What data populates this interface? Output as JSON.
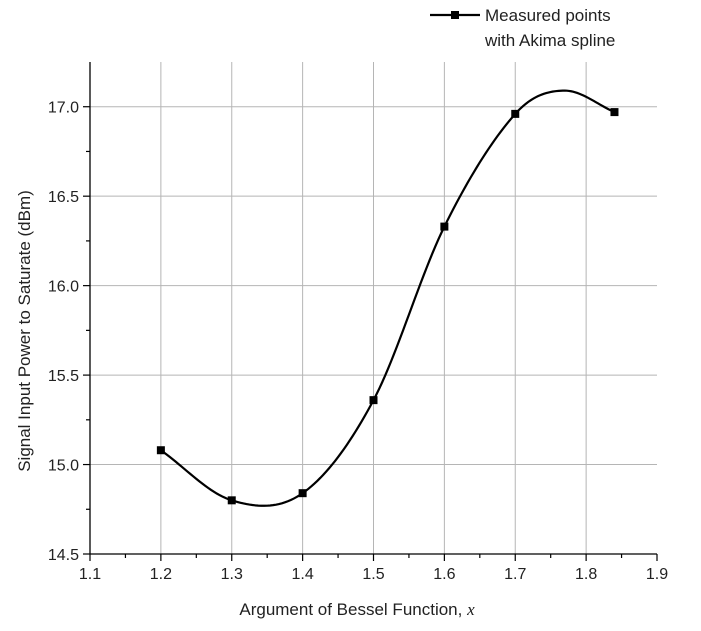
{
  "chart_data": {
    "type": "line",
    "title": "",
    "xlabel": "Argument of Bessel Function, ",
    "xlabel_var": "x",
    "ylabel": "Signal Input Power to Saturate (dBm)",
    "xlim": [
      1.1,
      1.9
    ],
    "ylim": [
      14.5,
      17.25
    ],
    "xticks": [
      "1.1",
      "1.2",
      "1.3",
      "1.4",
      "1.5",
      "1.6",
      "1.7",
      "1.8",
      "1.9"
    ],
    "yticks": [
      "14.5",
      "15.0",
      "15.5",
      "16.0",
      "16.5",
      "17.0"
    ],
    "grid": true,
    "legend_position": "top-right",
    "legend_lines": [
      "Measured points",
      "with Akima spline"
    ],
    "series": [
      {
        "name": "Measured points with Akima spline",
        "marker": "square",
        "x": [
          1.2,
          1.3,
          1.4,
          1.5,
          1.6,
          1.7,
          1.84
        ],
        "y": [
          15.08,
          14.8,
          14.84,
          15.36,
          16.33,
          16.96,
          16.97
        ]
      }
    ],
    "spline_peak": {
      "x": 1.77,
      "y": 17.09
    },
    "colors": {
      "line": "#000000",
      "grid": "#b5b5b5"
    }
  }
}
